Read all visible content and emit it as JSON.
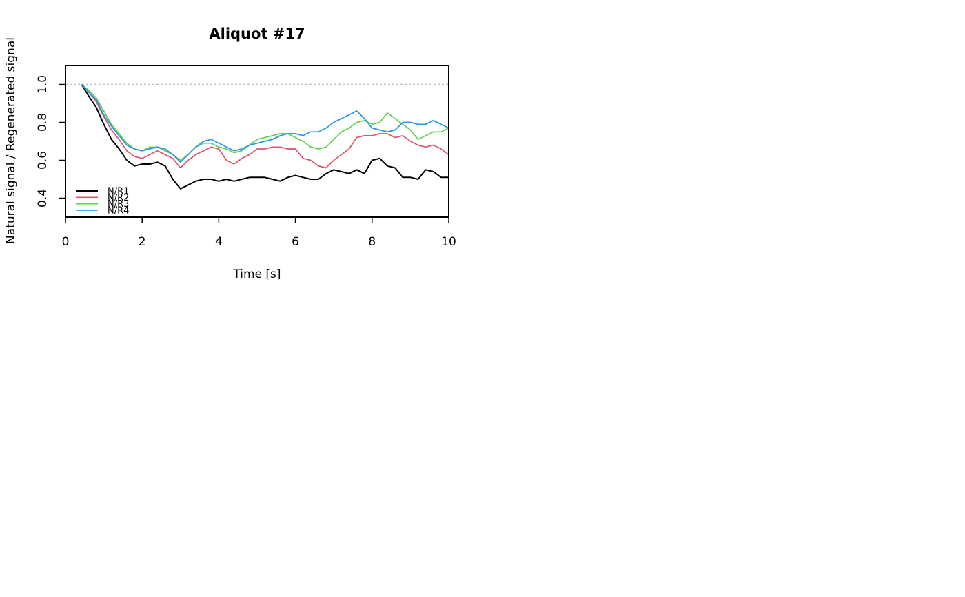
{
  "chart_data": {
    "type": "line",
    "title": "Aliquot #17",
    "xlabel": "Time [s]",
    "ylabel": "Natural signal / Regenerated signal",
    "xlim": [
      0,
      10
    ],
    "ylim": [
      0.3,
      1.1
    ],
    "x_ticks": [
      0,
      2,
      4,
      6,
      8,
      10
    ],
    "x_tick_labels": [
      "0",
      "2",
      "4",
      "6",
      "8",
      "10"
    ],
    "y_ticks": [
      0.4,
      0.6,
      0.8,
      1.0
    ],
    "y_tick_labels": [
      "0.4",
      "0.6",
      "0.8",
      "1.0"
    ],
    "reference_line": {
      "y": 1.0,
      "color": "#bebebe",
      "style": "dotted"
    },
    "legend_position": "bottom-left",
    "grid": false,
    "series": [
      {
        "name": "N/R1",
        "color": "#000000",
        "x": [
          0.42,
          0.6,
          0.8,
          1.0,
          1.2,
          1.4,
          1.6,
          1.8,
          2.0,
          2.2,
          2.4,
          2.6,
          2.8,
          3.0,
          3.2,
          3.4,
          3.6,
          3.8,
          4.0,
          4.2,
          4.4,
          4.6,
          4.8,
          5.0,
          5.2,
          5.4,
          5.6,
          5.8,
          6.0,
          6.2,
          6.4,
          6.6,
          6.8,
          7.0,
          7.2,
          7.4,
          7.6,
          7.8,
          8.0,
          8.2,
          8.4,
          8.6,
          8.8,
          9.0,
          9.2,
          9.4,
          9.6,
          9.8,
          10.0
        ],
        "y": [
          1.0,
          0.94,
          0.88,
          0.79,
          0.71,
          0.66,
          0.6,
          0.57,
          0.58,
          0.58,
          0.59,
          0.57,
          0.5,
          0.45,
          0.47,
          0.49,
          0.5,
          0.5,
          0.49,
          0.5,
          0.49,
          0.5,
          0.51,
          0.51,
          0.51,
          0.5,
          0.49,
          0.51,
          0.52,
          0.51,
          0.5,
          0.5,
          0.53,
          0.55,
          0.54,
          0.53,
          0.55,
          0.53,
          0.6,
          0.61,
          0.57,
          0.56,
          0.51,
          0.51,
          0.5,
          0.55,
          0.54,
          0.51,
          0.51
        ]
      },
      {
        "name": "N/R2",
        "color": "#df536b",
        "x": [
          0.42,
          0.6,
          0.8,
          1.0,
          1.2,
          1.4,
          1.6,
          1.8,
          2.0,
          2.2,
          2.4,
          2.6,
          2.8,
          3.0,
          3.2,
          3.4,
          3.6,
          3.8,
          4.0,
          4.2,
          4.4,
          4.6,
          4.8,
          5.0,
          5.2,
          5.4,
          5.6,
          5.8,
          6.0,
          6.2,
          6.4,
          6.6,
          6.8,
          7.0,
          7.2,
          7.4,
          7.6,
          7.8,
          8.0,
          8.2,
          8.4,
          8.6,
          8.8,
          9.0,
          9.2,
          9.4,
          9.6,
          9.8,
          10.0
        ],
        "y": [
          1.0,
          0.96,
          0.91,
          0.83,
          0.76,
          0.71,
          0.65,
          0.62,
          0.61,
          0.63,
          0.65,
          0.63,
          0.61,
          0.56,
          0.6,
          0.63,
          0.65,
          0.67,
          0.66,
          0.6,
          0.58,
          0.61,
          0.63,
          0.66,
          0.66,
          0.67,
          0.67,
          0.66,
          0.66,
          0.61,
          0.6,
          0.57,
          0.56,
          0.6,
          0.63,
          0.66,
          0.72,
          0.73,
          0.73,
          0.74,
          0.74,
          0.72,
          0.73,
          0.7,
          0.68,
          0.67,
          0.68,
          0.66,
          0.63
        ]
      },
      {
        "name": "N/R3",
        "color": "#61d04f",
        "x": [
          0.42,
          0.6,
          0.8,
          1.0,
          1.2,
          1.4,
          1.6,
          1.8,
          2.0,
          2.2,
          2.4,
          2.6,
          2.8,
          3.0,
          3.2,
          3.4,
          3.6,
          3.8,
          4.0,
          4.2,
          4.4,
          4.6,
          4.8,
          5.0,
          5.2,
          5.4,
          5.6,
          5.8,
          6.0,
          6.2,
          6.4,
          6.6,
          6.8,
          7.0,
          7.2,
          7.4,
          7.6,
          7.8,
          8.0,
          8.2,
          8.4,
          8.6,
          8.8,
          9.0,
          9.2,
          9.4,
          9.6,
          9.8,
          10.0
        ],
        "y": [
          1.0,
          0.97,
          0.93,
          0.86,
          0.79,
          0.74,
          0.69,
          0.66,
          0.65,
          0.67,
          0.67,
          0.65,
          0.63,
          0.6,
          0.63,
          0.67,
          0.69,
          0.69,
          0.67,
          0.66,
          0.64,
          0.65,
          0.68,
          0.71,
          0.72,
          0.73,
          0.74,
          0.74,
          0.72,
          0.7,
          0.67,
          0.66,
          0.67,
          0.71,
          0.75,
          0.77,
          0.8,
          0.81,
          0.79,
          0.8,
          0.85,
          0.82,
          0.79,
          0.76,
          0.71,
          0.73,
          0.75,
          0.75,
          0.77
        ]
      },
      {
        "name": "N/R4",
        "color": "#2297e6",
        "x": [
          0.42,
          0.6,
          0.8,
          1.0,
          1.2,
          1.4,
          1.6,
          1.8,
          2.0,
          2.2,
          2.4,
          2.6,
          2.8,
          3.0,
          3.2,
          3.4,
          3.6,
          3.8,
          4.0,
          4.2,
          4.4,
          4.6,
          4.8,
          5.0,
          5.2,
          5.4,
          5.6,
          5.8,
          6.0,
          6.2,
          6.4,
          6.6,
          6.8,
          7.0,
          7.2,
          7.4,
          7.6,
          7.8,
          8.0,
          8.2,
          8.4,
          8.6,
          8.8,
          9.0,
          9.2,
          9.4,
          9.6,
          9.8,
          10.0
        ],
        "y": [
          1.0,
          0.96,
          0.92,
          0.84,
          0.78,
          0.73,
          0.68,
          0.66,
          0.65,
          0.66,
          0.67,
          0.66,
          0.63,
          0.59,
          0.63,
          0.67,
          0.7,
          0.71,
          0.69,
          0.67,
          0.65,
          0.66,
          0.68,
          0.69,
          0.7,
          0.71,
          0.73,
          0.74,
          0.74,
          0.73,
          0.75,
          0.75,
          0.77,
          0.8,
          0.82,
          0.84,
          0.86,
          0.82,
          0.77,
          0.76,
          0.75,
          0.76,
          0.8,
          0.8,
          0.79,
          0.79,
          0.81,
          0.79,
          0.77
        ]
      }
    ]
  }
}
